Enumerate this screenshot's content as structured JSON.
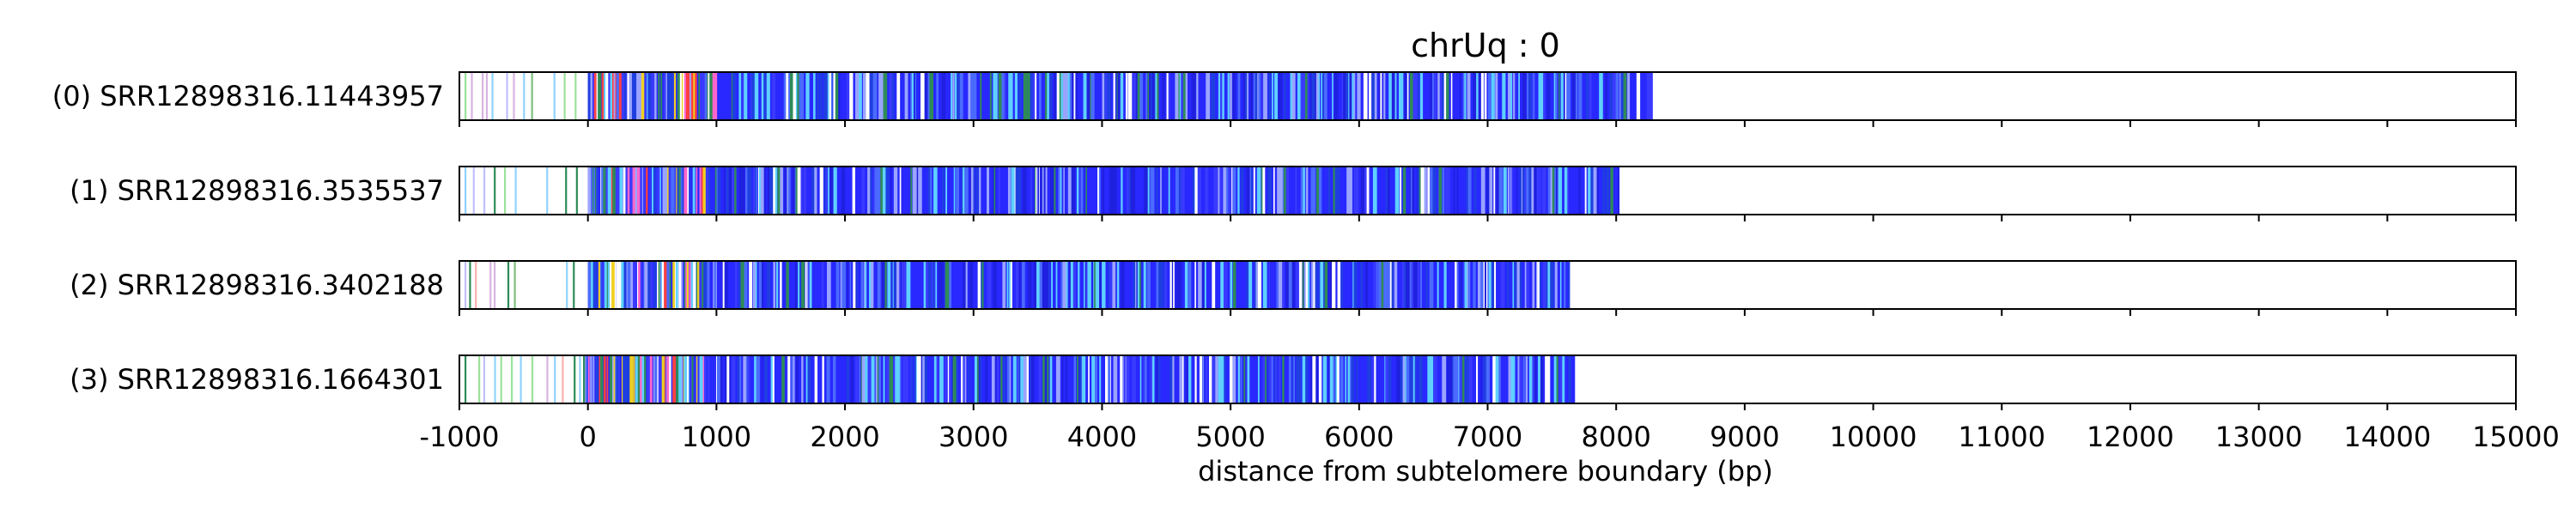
{
  "chart_data": {
    "type": "bar",
    "title": "chrUq : 0",
    "xlabel": "distance from subtelomere boundary (bp)",
    "ylabel": "",
    "xlim": [
      -1000,
      15000
    ],
    "x_ticks": [
      -1000,
      0,
      1000,
      2000,
      3000,
      4000,
      5000,
      6000,
      7000,
      8000,
      9000,
      10000,
      11000,
      12000,
      13000,
      14000,
      15000
    ],
    "x_tick_labels": [
      "-1000",
      "0",
      "1000",
      "2000",
      "3000",
      "4000",
      "5000",
      "6000",
      "7000",
      "8000",
      "9000",
      "10000",
      "11000",
      "12000",
      "13000",
      "14000",
      "15000"
    ],
    "grid": "vertical dashed at major ticks",
    "reads": [
      {
        "label": "(0) SRR12898316.11443957",
        "start": -1000,
        "end": 8270,
        "dense_start": 0,
        "seed": 11
      },
      {
        "label": "(1) SRR12898316.3535537",
        "start": -1000,
        "end": 8020,
        "dense_start": 0,
        "seed": 23
      },
      {
        "label": "(2) SRR12898316.3402188",
        "start": -1000,
        "end": 7640,
        "dense_start": 0,
        "seed": 37
      },
      {
        "label": "(3) SRR12898316.1664301",
        "start": -1000,
        "end": 7680,
        "dense_start": -20,
        "seed": 53
      }
    ],
    "colors": {
      "dominant": "#2828ff",
      "secondary": [
        "#3a3aff",
        "#1f3fe0",
        "#4b6bff",
        "#5fd0ff",
        "#9aa4ff",
        "#2e8b57",
        "#ff4040",
        "#f0d020",
        "#ff66cc",
        "#ffffff"
      ]
    }
  }
}
